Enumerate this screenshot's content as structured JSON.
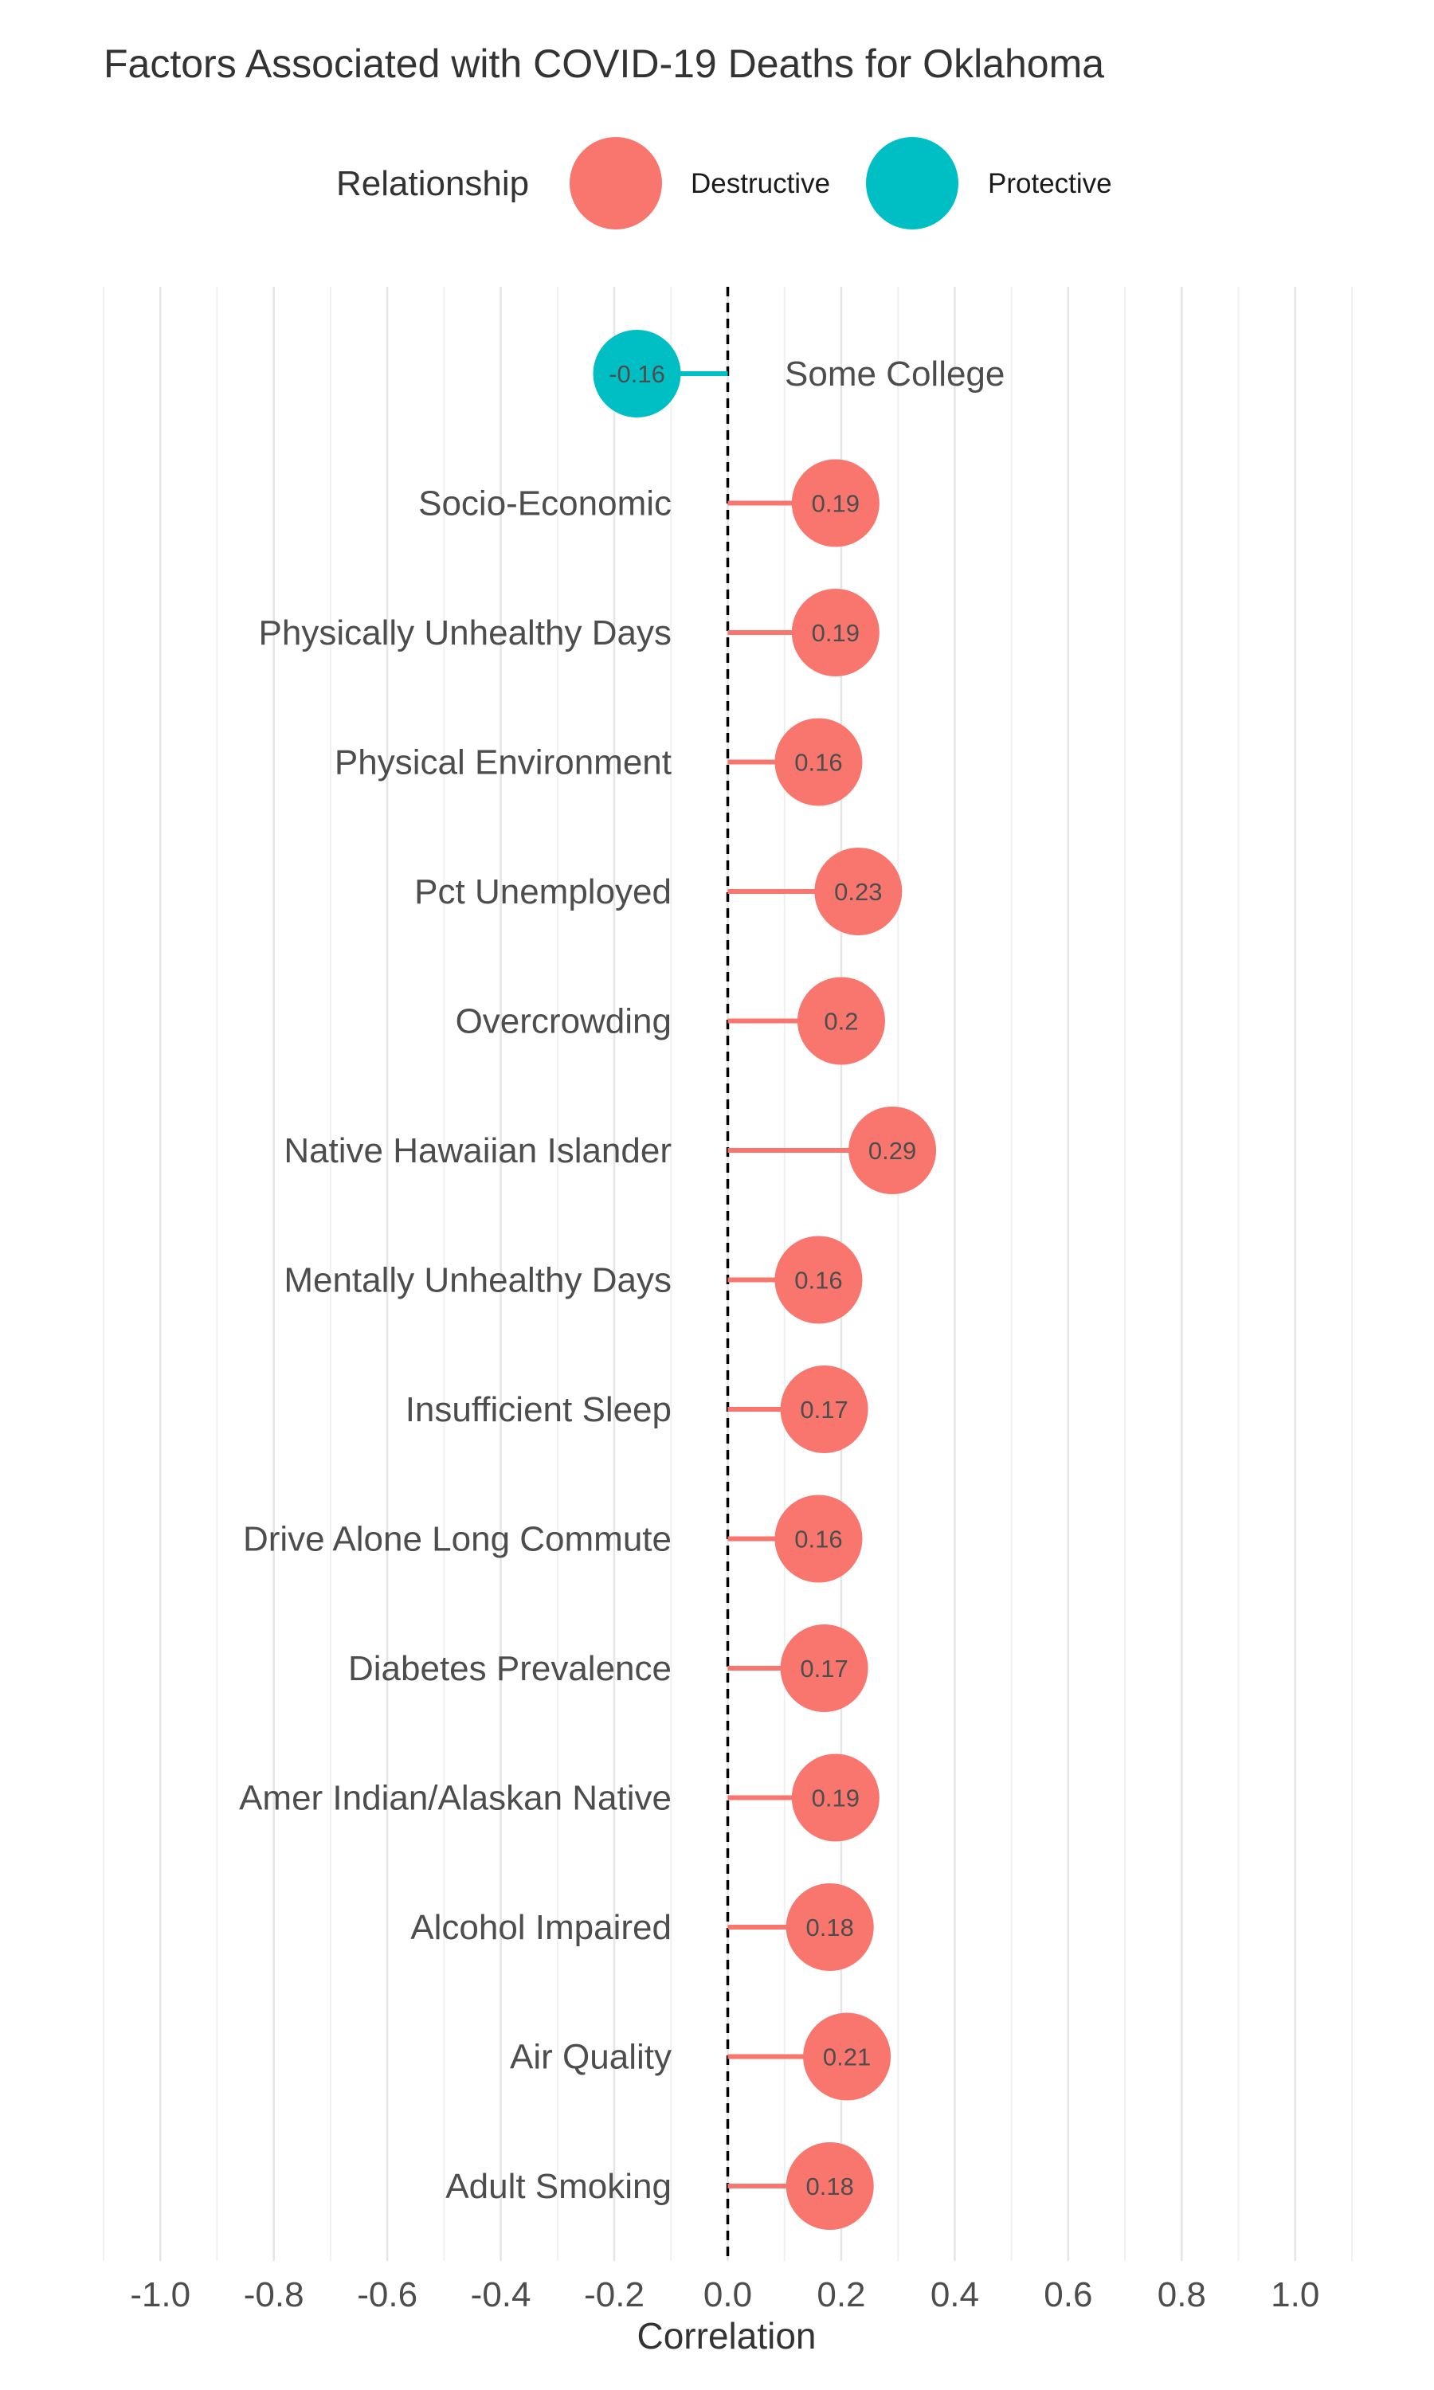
{
  "chart_data": {
    "type": "lollipop",
    "title": "Factors Associated with COVID-19 Deaths for Oklahoma",
    "xlabel": "Correlation",
    "ylabel": "",
    "xlim": [
      -1.1,
      1.1
    ],
    "x_ticks": [
      "-1.0",
      "-0.8",
      "-0.6",
      "-0.4",
      "-0.2",
      "0.0",
      "0.2",
      "0.4",
      "0.6",
      "0.8",
      "1.0"
    ],
    "x_tick_values": [
      -1.0,
      -0.8,
      -0.6,
      -0.4,
      -0.2,
      0.0,
      0.2,
      0.4,
      0.6,
      0.8,
      1.0
    ],
    "reference_line": 0,
    "grid": "vertical",
    "legend": {
      "title": "Relationship",
      "position": "top",
      "entries": [
        {
          "label": "Destructive",
          "color": "#F8766D"
        },
        {
          "label": "Protective",
          "color": "#00BFC4"
        }
      ]
    },
    "points": [
      {
        "label": "Some College",
        "value": -0.16,
        "value_label": "-0.16",
        "relationship": "Protective"
      },
      {
        "label": "Socio-Economic",
        "value": 0.19,
        "value_label": "0.19",
        "relationship": "Destructive"
      },
      {
        "label": "Physically Unhealthy Days",
        "value": 0.19,
        "value_label": "0.19",
        "relationship": "Destructive"
      },
      {
        "label": "Physical Environment",
        "value": 0.16,
        "value_label": "0.16",
        "relationship": "Destructive"
      },
      {
        "label": "Pct Unemployed",
        "value": 0.23,
        "value_label": "0.23",
        "relationship": "Destructive"
      },
      {
        "label": "Overcrowding",
        "value": 0.2,
        "value_label": "0.2",
        "relationship": "Destructive"
      },
      {
        "label": "Native Hawaiian Islander",
        "value": 0.29,
        "value_label": "0.29",
        "relationship": "Destructive"
      },
      {
        "label": "Mentally Unhealthy Days",
        "value": 0.16,
        "value_label": "0.16",
        "relationship": "Destructive"
      },
      {
        "label": "Insufficient Sleep",
        "value": 0.17,
        "value_label": "0.17",
        "relationship": "Destructive"
      },
      {
        "label": "Drive Alone Long Commute",
        "value": 0.16,
        "value_label": "0.16",
        "relationship": "Destructive"
      },
      {
        "label": "Diabetes Prevalence",
        "value": 0.17,
        "value_label": "0.17",
        "relationship": "Destructive"
      },
      {
        "label": "Amer Indian/Alaskan Native",
        "value": 0.19,
        "value_label": "0.19",
        "relationship": "Destructive"
      },
      {
        "label": "Alcohol Impaired",
        "value": 0.18,
        "value_label": "0.18",
        "relationship": "Destructive"
      },
      {
        "label": "Air Quality",
        "value": 0.21,
        "value_label": "0.21",
        "relationship": "Destructive"
      },
      {
        "label": "Adult Smoking",
        "value": 0.18,
        "value_label": "0.18",
        "relationship": "Destructive"
      }
    ]
  }
}
